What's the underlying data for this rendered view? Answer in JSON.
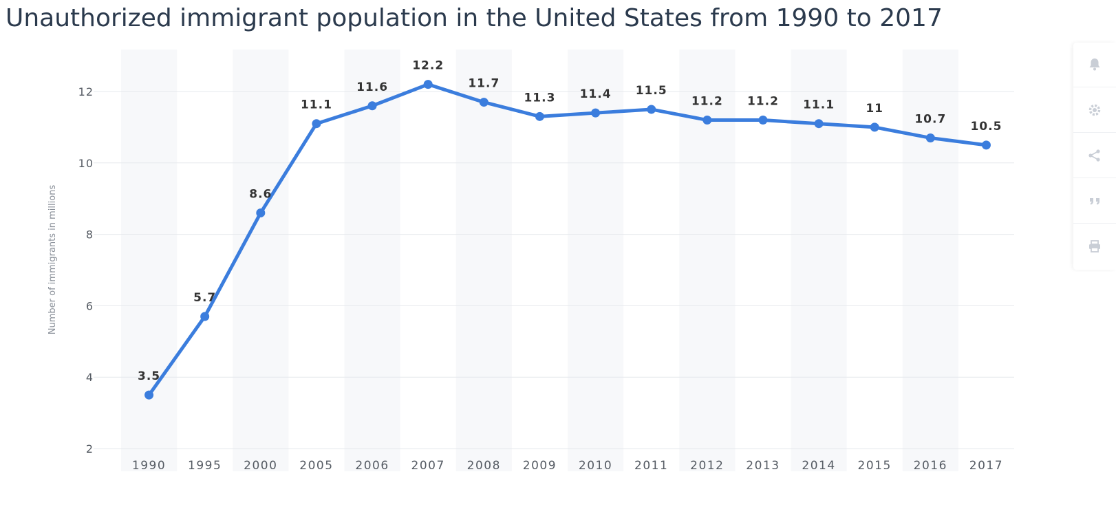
{
  "title": "Unauthorized immigrant population in the United States from 1990 to 2017",
  "chart_data": {
    "type": "line",
    "title": "Unauthorized immigrant population in the United States from 1990 to 2017",
    "xlabel": "",
    "ylabel": "Number of immigrants in millions",
    "categories": [
      "1990",
      "1995",
      "2000",
      "2005",
      "2006",
      "2007",
      "2008",
      "2009",
      "2010",
      "2011",
      "2012",
      "2013",
      "2014",
      "2015",
      "2016",
      "2017"
    ],
    "values": [
      3.5,
      5.7,
      8.6,
      11.1,
      11.6,
      12.2,
      11.7,
      11.3,
      11.4,
      11.5,
      11.2,
      11.2,
      11.1,
      11,
      10.7,
      10.5
    ],
    "data_labels": [
      "3.5",
      "5.7",
      "8.6",
      "11.1",
      "11.6",
      "12.2",
      "11.7",
      "11.3",
      "11.4",
      "11.5",
      "11.2",
      "11.2",
      "11.1",
      "11",
      "10.7",
      "10.5"
    ],
    "yticks": [
      2,
      4,
      6,
      8,
      10,
      12
    ],
    "ylim": [
      2,
      13
    ],
    "grid": true,
    "line_color": "#3b7ddd",
    "legend": "none"
  },
  "toolbar": {
    "icons": [
      "bell-icon",
      "gear-icon",
      "share-icon",
      "quote-icon",
      "print-icon"
    ]
  }
}
